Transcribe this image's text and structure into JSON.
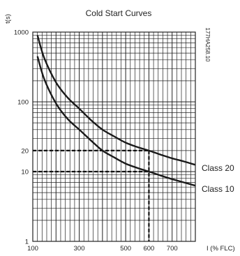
{
  "chart_data": {
    "type": "line",
    "title": "Cold Start Curves",
    "xlabel": "I (% FLC)",
    "ylabel": "t(s)",
    "y_scale": "log",
    "xlim": [
      100,
      800
    ],
    "ylim": [
      1,
      1000
    ],
    "grid": true,
    "x_ticks": [
      "100",
      "300",
      "500",
      "600",
      "700"
    ],
    "y_ticks": [
      "1000",
      "100",
      "20",
      "10",
      "1"
    ],
    "side_code": "177HA258.10",
    "series": [
      {
        "name": "Class 20",
        "x": [
          120,
          150,
          200,
          250,
          300,
          350,
          400,
          450,
          500,
          550,
          600,
          650,
          700,
          750,
          800
        ],
        "y": [
          900,
          420,
          190,
          115,
          80,
          55,
          40,
          32,
          26,
          22.5,
          20,
          17.5,
          15.5,
          14,
          12.5
        ]
      },
      {
        "name": "Class 10",
        "x": [
          120,
          150,
          200,
          250,
          300,
          350,
          400,
          450,
          500,
          550,
          600,
          650,
          700,
          750,
          800
        ],
        "y": [
          450,
          210,
          95,
          57,
          40,
          28,
          20,
          16,
          13,
          11.3,
          10,
          8.8,
          7.8,
          7,
          6.3
        ]
      }
    ],
    "annotations": [
      {
        "type": "dashed-guide",
        "x": 600,
        "y": 20
      },
      {
        "type": "dashed-guide",
        "x": 600,
        "y": 10
      }
    ]
  }
}
